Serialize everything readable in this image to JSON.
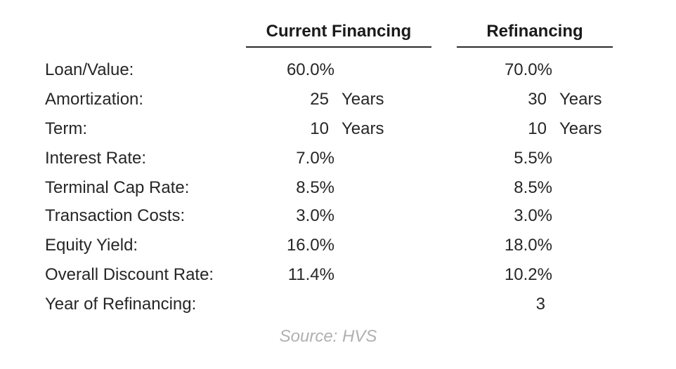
{
  "headers": {
    "current": "Current Financing",
    "refinancing": "Refinancing"
  },
  "rows": {
    "loan_value": {
      "label": "Loan/Value:",
      "current": "60.0%",
      "refinancing": "70.0%"
    },
    "amortization": {
      "label": "Amortization:",
      "current": "25",
      "current_unit": "Years",
      "refinancing": "30",
      "refinancing_unit": "Years"
    },
    "term": {
      "label": "Term:",
      "current": "10",
      "current_unit": "Years",
      "refinancing": "10",
      "refinancing_unit": "Years"
    },
    "interest_rate": {
      "label": "Interest Rate:",
      "current": "7.0%",
      "refinancing": "5.5%"
    },
    "terminal_cap": {
      "label": "Terminal Cap Rate:",
      "current": "8.5%",
      "refinancing": "8.5%"
    },
    "transaction": {
      "label": "Transaction Costs:",
      "current": "3.0%",
      "refinancing": "3.0%"
    },
    "equity_yield": {
      "label": "Equity Yield:",
      "current": "16.0%",
      "refinancing": "18.0%"
    },
    "discount_rate": {
      "label": "Overall Discount Rate:",
      "current": "11.4%",
      "refinancing": "10.2%"
    },
    "refi_year": {
      "label": "Year of Refinancing:",
      "current": "",
      "refinancing": "3"
    }
  },
  "source": "Source: HVS"
}
